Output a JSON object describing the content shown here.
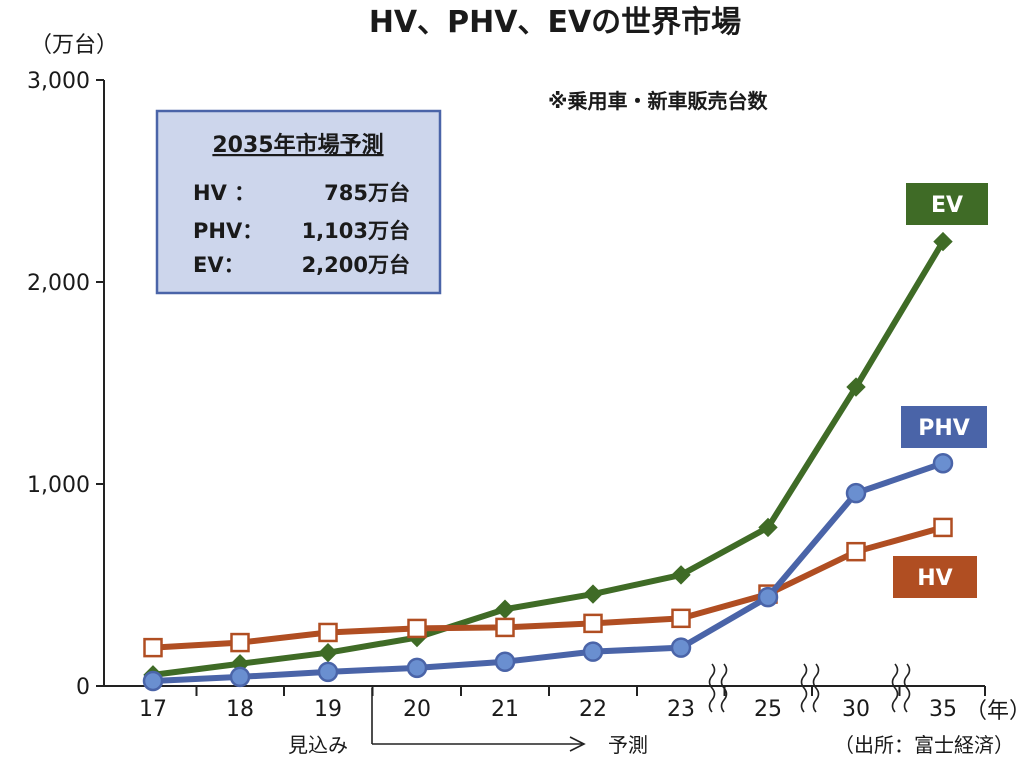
{
  "chart_data": {
    "type": "line",
    "title": "HV、PHV、EVの世界市場",
    "y_unit_label": "（万台）",
    "x_unit_label": "（年）",
    "note": "※乗用車・新車販売台数",
    "ylim": [
      0,
      3000
    ],
    "y_ticks": [
      0,
      1000,
      2000,
      3000
    ],
    "y_tick_labels": [
      "0",
      "1,000",
      "2,000",
      "3,000"
    ],
    "categories": [
      "17",
      "18",
      "19",
      "20",
      "21",
      "22",
      "23",
      "25",
      "30",
      "35"
    ],
    "series": [
      {
        "name": "EV",
        "color": "#3f6b26",
        "marker": "diamond",
        "values": [
          55,
          110,
          165,
          240,
          380,
          455,
          550,
          785,
          1480,
          2200
        ]
      },
      {
        "name": "PHV",
        "color": "#4a64a8",
        "marker": "circle",
        "values": [
          25,
          45,
          70,
          90,
          120,
          170,
          190,
          440,
          955,
          1103
        ]
      },
      {
        "name": "HV",
        "color": "#b04e22",
        "marker": "square-open",
        "values": [
          190,
          215,
          265,
          285,
          290,
          310,
          335,
          455,
          665,
          785
        ]
      }
    ],
    "forecast_box": {
      "title": "2035年市場予測",
      "rows": [
        {
          "label": "HV ：",
          "value": "785万台"
        },
        {
          "label": "PHV：",
          "value": "1,103万台"
        },
        {
          "label": "EV：",
          "value": "2,200万台"
        }
      ]
    },
    "actual_label": "見込み",
    "forecast_label": "予測",
    "source": "（出所：富士経済）"
  }
}
